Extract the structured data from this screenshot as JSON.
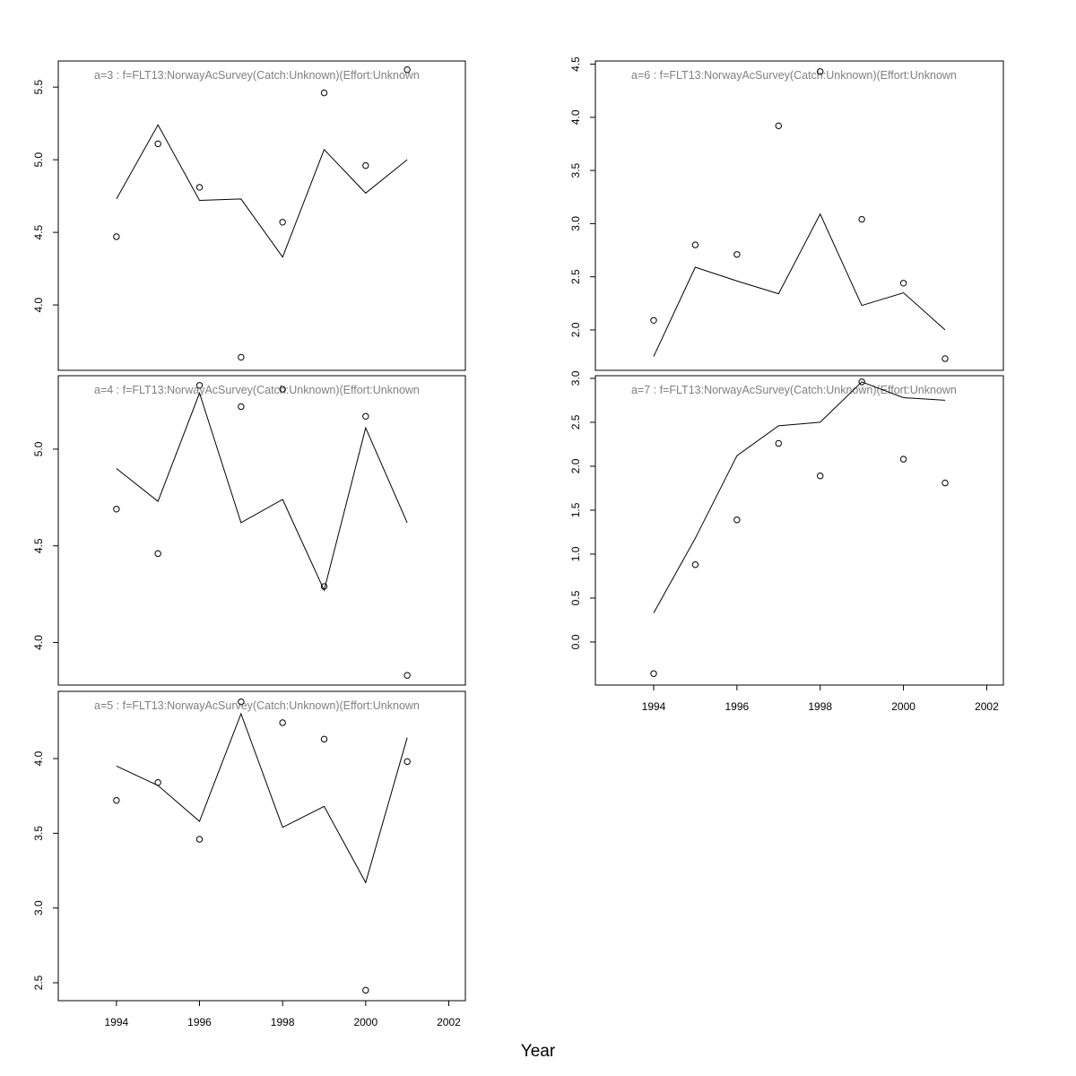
{
  "chart_data": {
    "type": "line",
    "xlabel": "Year",
    "x_ticks": [
      1994,
      1996,
      1998,
      2000,
      2002
    ],
    "xlim": [
      1992.6,
      2002.4
    ],
    "colors": {
      "line": "#000000",
      "points": "#000000",
      "title": "#808080",
      "frame": "#000000"
    },
    "panels": [
      {
        "title": "a=3  :  f=FLT13:NorwayAcSurvey(Catch:Unknown)(Effort:Unknown",
        "ylim": [
          3.55,
          5.68
        ],
        "y_ticks": [
          4.0,
          4.5,
          5.0,
          5.5
        ],
        "y_tick_labels": [
          "4.0",
          "4.5",
          "5.0",
          "5.5"
        ],
        "x": [
          1994,
          1995,
          1996,
          1997,
          1998,
          1999,
          2000,
          2001
        ],
        "line": [
          4.73,
          5.24,
          4.72,
          4.73,
          4.33,
          5.07,
          4.77,
          5.0
        ],
        "points": [
          4.47,
          5.11,
          4.81,
          3.64,
          4.57,
          5.46,
          4.96,
          5.62
        ]
      },
      {
        "title": "a=4  :  f=FLT13:NorwayAcSurvey(Catch:Unknown)(Effort:Unknown",
        "ylim": [
          3.78,
          5.38
        ],
        "y_ticks": [
          4.0,
          4.5,
          5.0
        ],
        "y_tick_labels": [
          "4.0",
          "4.5",
          "5.0"
        ],
        "x": [
          1994,
          1995,
          1996,
          1997,
          1998,
          1999,
          2000,
          2001
        ],
        "line": [
          4.9,
          4.73,
          5.29,
          4.62,
          4.74,
          4.27,
          5.11,
          4.62
        ],
        "points": [
          4.69,
          4.46,
          5.33,
          5.22,
          5.31,
          4.29,
          5.17,
          3.83
        ]
      },
      {
        "title": "a=5  :  f=FLT13:NorwayAcSurvey(Catch:Unknown)(Effort:Unknown",
        "ylim": [
          2.38,
          4.45
        ],
        "y_ticks": [
          2.5,
          3.0,
          3.5,
          4.0
        ],
        "y_tick_labels": [
          "2.5",
          "3.0",
          "3.5",
          "4.0"
        ],
        "x": [
          1994,
          1995,
          1996,
          1997,
          1998,
          1999,
          2000,
          2001
        ],
        "line": [
          3.95,
          3.82,
          3.58,
          4.3,
          3.54,
          3.68,
          3.17,
          4.14
        ],
        "points": [
          3.72,
          3.84,
          3.46,
          4.38,
          4.24,
          4.13,
          2.45,
          3.98
        ]
      },
      {
        "title": "a=6  :  f=FLT13:NorwayAcSurvey(Catch:Unknown)(Effort:Unknown",
        "ylim": [
          1.62,
          4.53
        ],
        "y_ticks": [
          2.0,
          2.5,
          3.0,
          3.5,
          4.0,
          4.5
        ],
        "y_tick_labels": [
          "2.0",
          "2.5",
          "3.0",
          "3.5",
          "4.0",
          "4.5"
        ],
        "x": [
          1994,
          1995,
          1996,
          1997,
          1998,
          1999,
          2000,
          2001
        ],
        "line": [
          1.75,
          2.59,
          2.46,
          2.34,
          3.09,
          2.23,
          2.35,
          2.0
        ],
        "points": [
          2.09,
          2.8,
          2.71,
          3.92,
          4.43,
          3.04,
          2.44,
          1.73
        ]
      },
      {
        "title": "a=7  :  f=FLT13:NorwayAcSurvey(Catch:Unknown)(Effort:Unknown",
        "ylim": [
          -0.49,
          3.03
        ],
        "y_ticks": [
          0.0,
          0.5,
          1.0,
          1.5,
          2.0,
          2.5,
          3.0
        ],
        "y_tick_labels": [
          "0.0",
          "0.5",
          "1.0",
          "1.5",
          "2.0",
          "2.5",
          "3.0"
        ],
        "x": [
          1994,
          1995,
          1996,
          1997,
          1998,
          1999,
          2000,
          2001
        ],
        "line": [
          0.33,
          1.18,
          2.12,
          2.46,
          2.5,
          2.96,
          2.78,
          2.75
        ],
        "points": [
          -0.36,
          0.88,
          1.39,
          2.26,
          1.89,
          2.96,
          2.08,
          1.81
        ]
      }
    ]
  }
}
